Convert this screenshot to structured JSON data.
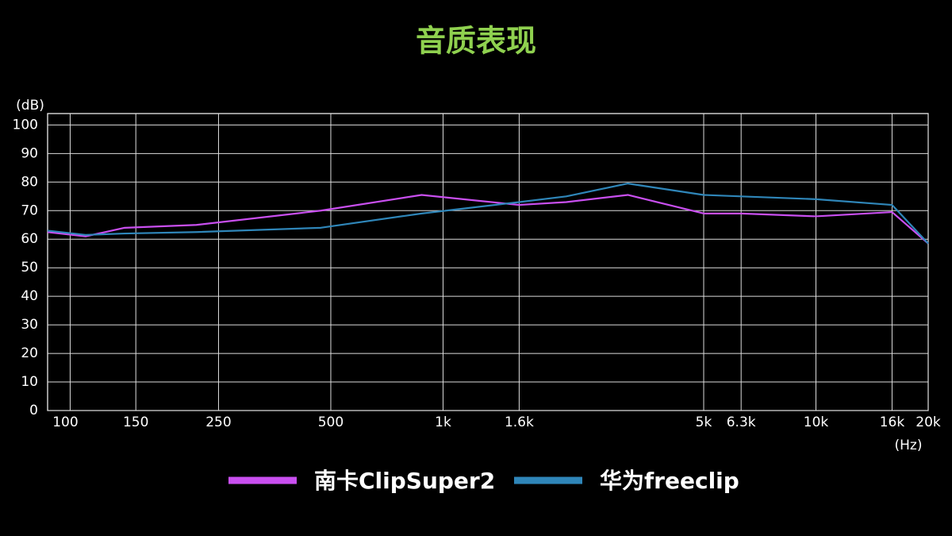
{
  "chart_data": {
    "type": "line",
    "title": "音质表现",
    "y_label": "(dB)",
    "x_label": "(Hz)",
    "xscale": "log",
    "x": [
      87,
      110,
      140,
      218,
      470,
      876,
      1600,
      2140,
      3130,
      5000,
      6300,
      10000,
      16000,
      20000
    ],
    "series": [
      {
        "name": "南卡ClipSuper2",
        "color": "#c94ff0",
        "values": [
          62.5,
          61,
          64,
          65,
          70,
          75.5,
          72,
          73,
          75.5,
          69,
          69,
          68,
          69.5,
          58.5
        ]
      },
      {
        "name": "华为freeclip",
        "color": "#2f86b9",
        "values": [
          63,
          61.5,
          62,
          62.5,
          64,
          69,
          73,
          75,
          79.5,
          75.5,
          75,
          74,
          72,
          58.5
        ]
      }
    ],
    "xlim": [
      87,
      20000
    ],
    "xticks": [
      100,
      150,
      250,
      500,
      {
        "value": 1000,
        "label": "1k"
      },
      {
        "value": 1600,
        "label": "1.6k"
      },
      {
        "value": 5000,
        "label": "5k"
      },
      {
        "value": 6300,
        "label": "6.3k"
      },
      {
        "value": 10000,
        "label": "10k"
      },
      {
        "value": 16000,
        "label": "16k"
      },
      {
        "value": 20000,
        "label": "20k"
      }
    ],
    "ylim": [
      0,
      104
    ],
    "yticks": [
      0,
      10,
      20,
      30,
      40,
      50,
      60,
      70,
      80,
      90,
      100
    ],
    "grid": true
  }
}
